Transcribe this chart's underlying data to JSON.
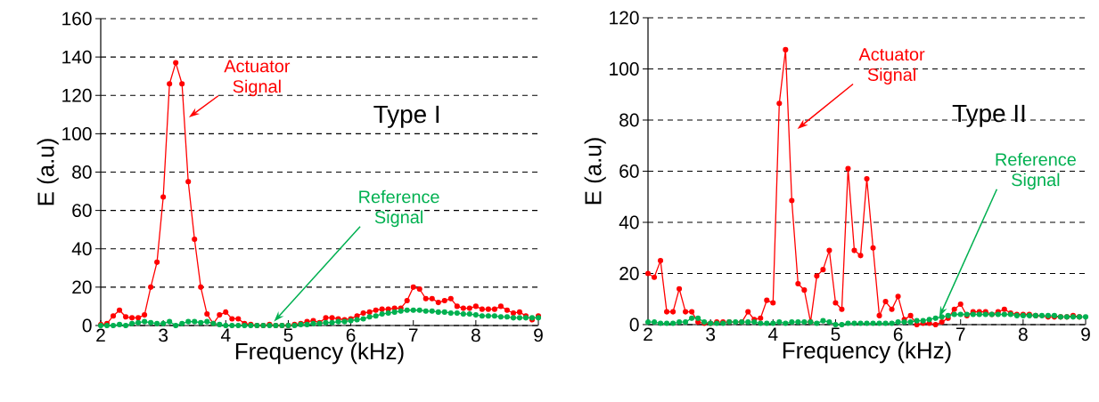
{
  "chart_data": [
    {
      "type": "line",
      "title": "Type I",
      "xlabel": "Frequency (kHz)",
      "ylabel": "E (a.u)",
      "grid": "y",
      "legend": false,
      "marker": "circle",
      "line_style": "solid",
      "x": [
        2.0,
        2.1,
        2.2,
        2.3,
        2.4,
        2.5,
        2.6,
        2.7,
        2.8,
        2.9,
        3.0,
        3.1,
        3.2,
        3.3,
        3.4,
        3.5,
        3.6,
        3.7,
        3.8,
        3.9,
        4.0,
        4.1,
        4.2,
        4.3,
        4.4,
        4.5,
        4.6,
        4.7,
        4.8,
        4.9,
        5.0,
        5.1,
        5.2,
        5.3,
        5.4,
        5.5,
        5.6,
        5.7,
        5.8,
        5.9,
        6.0,
        6.1,
        6.2,
        6.3,
        6.4,
        6.5,
        6.6,
        6.7,
        6.8,
        6.9,
        7.0,
        7.1,
        7.2,
        7.3,
        7.4,
        7.5,
        7.6,
        7.7,
        7.8,
        7.9,
        8.0,
        8.1,
        8.2,
        8.3,
        8.4,
        8.5,
        8.6,
        8.7,
        8.8,
        8.9,
        9.0
      ],
      "xlim": [
        2,
        9
      ],
      "xticks": [
        2,
        3,
        4,
        5,
        6,
        7,
        8,
        9
      ],
      "ylim": [
        0,
        160
      ],
      "yticks": [
        0,
        20,
        40,
        60,
        80,
        100,
        120,
        140,
        160
      ],
      "series": [
        {
          "name": "Actuator Signal",
          "color": "#ff0000",
          "values": [
            0.5,
            1,
            5,
            8,
            4.5,
            4,
            4,
            5.5,
            20,
            33,
            67,
            126,
            137,
            126,
            75,
            45,
            20,
            6,
            1,
            5.5,
            7,
            3.5,
            3.5,
            1,
            0.5,
            0,
            0,
            0.5,
            0,
            0,
            0,
            0.5,
            1,
            2,
            2.5,
            1.5,
            4,
            4,
            3.5,
            3,
            3.5,
            5,
            6.5,
            7,
            8,
            8.5,
            8.5,
            9,
            9,
            13,
            20,
            19,
            14,
            14,
            12,
            13,
            14,
            10,
            9,
            9,
            10,
            8.5,
            8.5,
            8.5,
            10,
            8,
            6.5,
            7,
            5,
            3,
            5
          ]
        },
        {
          "name": "Reference Signal",
          "color": "#00b050",
          "values": [
            0,
            0,
            0,
            0.5,
            0,
            1,
            1.5,
            2,
            1.5,
            1,
            1,
            2,
            0,
            1,
            2,
            2,
            1.5,
            2,
            1,
            0.5,
            0,
            0,
            0,
            0,
            0,
            0,
            0,
            0,
            0,
            0,
            0,
            0,
            0.5,
            0.5,
            1,
            1,
            1.5,
            1.5,
            2,
            2,
            2.5,
            3,
            3.5,
            4.5,
            5,
            6,
            6.5,
            7,
            7.5,
            8,
            8,
            8,
            7.5,
            7.5,
            7,
            7,
            6.5,
            6.5,
            6,
            6,
            5.5,
            5,
            5,
            5,
            4.5,
            4.5,
            4,
            4,
            4,
            4,
            4
          ]
        }
      ]
    },
    {
      "type": "line",
      "title": "Type II",
      "xlabel": "Frequency (kHz)",
      "ylabel": "E (a.u)",
      "grid": "y",
      "legend": false,
      "marker": "circle",
      "line_style": "solid",
      "x": [
        2.0,
        2.1,
        2.2,
        2.3,
        2.4,
        2.5,
        2.6,
        2.7,
        2.8,
        2.9,
        3.0,
        3.1,
        3.2,
        3.3,
        3.4,
        3.5,
        3.6,
        3.7,
        3.8,
        3.9,
        4.0,
        4.1,
        4.2,
        4.3,
        4.4,
        4.5,
        4.6,
        4.7,
        4.8,
        4.9,
        5.0,
        5.1,
        5.2,
        5.3,
        5.4,
        5.5,
        5.6,
        5.7,
        5.8,
        5.9,
        6.0,
        6.1,
        6.2,
        6.3,
        6.4,
        6.5,
        6.6,
        6.7,
        6.8,
        6.9,
        7.0,
        7.1,
        7.2,
        7.3,
        7.4,
        7.5,
        7.6,
        7.7,
        7.8,
        7.9,
        8.0,
        8.1,
        8.2,
        8.3,
        8.4,
        8.5,
        8.6,
        8.7,
        8.8,
        8.9,
        9.0
      ],
      "xlim": [
        2,
        9
      ],
      "xticks": [
        2,
        3,
        4,
        5,
        6,
        7,
        8,
        9
      ],
      "ylim": [
        0,
        120
      ],
      "yticks": [
        0,
        20,
        40,
        60,
        80,
        100,
        120
      ],
      "series": [
        {
          "name": "Actuator Signal",
          "color": "#ff0000",
          "values": [
            20,
            18.5,
            25,
            5,
            5,
            14,
            5,
            5,
            1,
            0.5,
            0.5,
            1,
            1,
            1,
            null,
            1,
            5,
            2,
            2.5,
            9.5,
            8.5,
            86.5,
            107.5,
            48.5,
            16,
            13.5,
            1,
            19,
            21.5,
            29,
            8.5,
            6,
            61,
            29,
            27,
            57,
            30,
            3.5,
            9,
            6,
            11,
            2,
            3.5,
            0,
            0.5,
            0.5,
            0,
            1,
            2.5,
            6,
            8,
            3.5,
            5,
            5,
            5,
            4,
            5,
            6,
            4.5,
            4,
            4,
            4,
            3.5,
            null,
            3,
            3,
            3,
            3,
            3.5,
            3,
            null
          ]
        },
        {
          "name": "Reference Signal",
          "color": "#00b050",
          "values": [
            1,
            1,
            0.5,
            0.5,
            0.5,
            1,
            1,
            2.5,
            2.5,
            1,
            0.5,
            0.5,
            0.5,
            1,
            1,
            1,
            1,
            1,
            0.5,
            0.5,
            0.5,
            1,
            0.5,
            1,
            1,
            1,
            1,
            0.5,
            1.5,
            1,
            0,
            0,
            0.5,
            0.5,
            0.5,
            0.5,
            0.5,
            0.5,
            0.5,
            0.5,
            1,
            1,
            1,
            1.5,
            1.5,
            2,
            2.5,
            3,
            3.5,
            4,
            4,
            4,
            4,
            4,
            4,
            4,
            4,
            4,
            4,
            3.5,
            3.5,
            3.5,
            3.5,
            3.5,
            3.5,
            3.5,
            3,
            3,
            3,
            3,
            3
          ]
        }
      ]
    }
  ]
}
